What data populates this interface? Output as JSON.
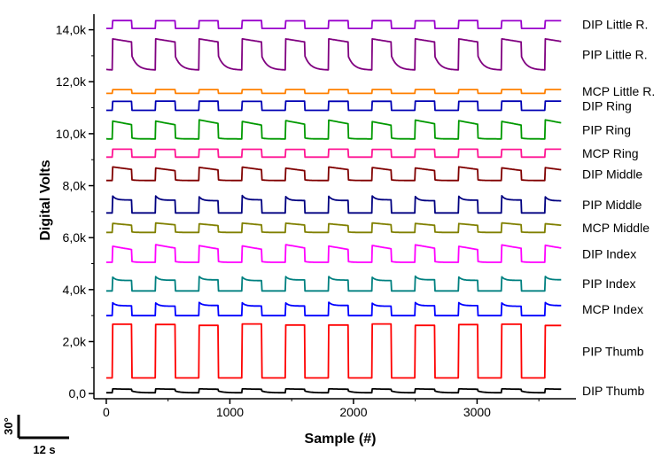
{
  "chart_data": {
    "type": "line",
    "title": "",
    "xlabel": "Sample (#)",
    "ylabel": "Digital Volts",
    "xlim": [
      -100,
      3800
    ],
    "ylim": [
      -200,
      14600
    ],
    "x_ticks": [
      0,
      1000,
      2000,
      3000
    ],
    "x_tick_labels": [
      "0",
      "1000",
      "2000",
      "3000"
    ],
    "y_ticks": [
      0,
      2000,
      4000,
      6000,
      8000,
      10000,
      12000,
      14000
    ],
    "y_tick_labels": [
      "0,0",
      "2,0k",
      "4,0k",
      "6,0k",
      "8,0k",
      "10,0k",
      "12,0k",
      "14,0k"
    ],
    "grid": false,
    "period_samples": 350,
    "high_duty_fraction": 0.45,
    "x_end": 3680,
    "series": [
      {
        "name": "DIP Little R.",
        "color": "#9900cc",
        "low": 14050,
        "high": 14350,
        "shape": "square"
      },
      {
        "name": "PIP Little R.",
        "color": "#800080",
        "low": 12450,
        "high": 13650,
        "shape": "decay"
      },
      {
        "name": "MCP Little R.",
        "color": "#ff8000",
        "low": 11550,
        "high": 11700,
        "shape": "square"
      },
      {
        "name": "DIP Ring",
        "color": "#0000b3",
        "low": 10900,
        "high": 11250,
        "shape": "square"
      },
      {
        "name": "PIP Ring",
        "color": "#009900",
        "low": 9800,
        "high": 10500,
        "shape": "tilt"
      },
      {
        "name": "MCP Ring",
        "color": "#ff1493",
        "low": 9100,
        "high": 9400,
        "shape": "square"
      },
      {
        "name": "DIP Middle",
        "color": "#800000",
        "low": 8200,
        "high": 8700,
        "shape": "tilt"
      },
      {
        "name": "PIP Middle",
        "color": "#000080",
        "low": 6950,
        "high": 7600,
        "shape": "spike"
      },
      {
        "name": "MCP Middle",
        "color": "#808000",
        "low": 6200,
        "high": 6550,
        "shape": "tilt"
      },
      {
        "name": "DIP Index",
        "color": "#ff00ff",
        "low": 5050,
        "high": 5700,
        "shape": "tilt"
      },
      {
        "name": "PIP Index",
        "color": "#008080",
        "low": 3950,
        "high": 4500,
        "shape": "spike"
      },
      {
        "name": "MCP Index",
        "color": "#0000ff",
        "low": 3000,
        "high": 3500,
        "shape": "spike"
      },
      {
        "name": "PIP Thumb",
        "color": "#ff0000",
        "low": 600,
        "high": 2650,
        "shape": "square"
      },
      {
        "name": "DIP Thumb",
        "color": "#000000",
        "low": 30,
        "high": 180,
        "shape": "decay"
      }
    ]
  },
  "scale_bar": {
    "vertical_label": "30°",
    "horizontal_label": "12 s"
  }
}
